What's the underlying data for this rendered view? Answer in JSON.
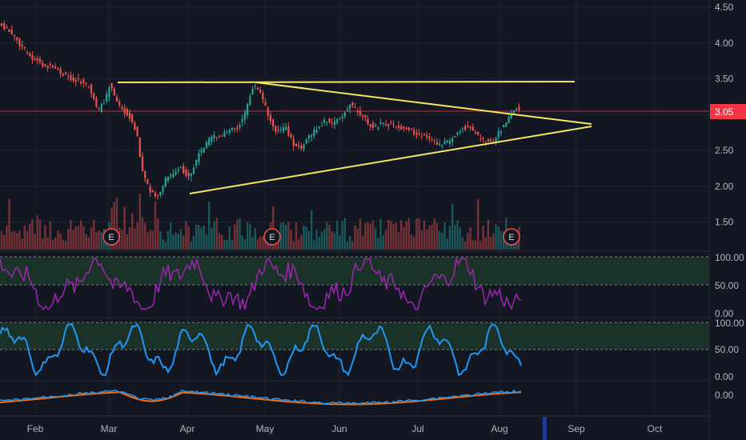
{
  "chart_data": {
    "type": "candlestick",
    "price_axis": {
      "ticks": [
        "4.50",
        "4.00",
        "3.50",
        "3.00",
        "2.50",
        "2.00",
        "1.50"
      ],
      "ylim": [
        1.1,
        4.6
      ]
    },
    "current_price": {
      "label": "3.05",
      "value": 3.05
    },
    "time_axis": {
      "ticks": [
        "Feb",
        "Mar",
        "Apr",
        "May",
        "Jun",
        "Jul",
        "Aug",
        "Sep",
        "Oct"
      ]
    },
    "earnings_markers": [
      "E",
      "E",
      "E"
    ],
    "trendlines": [
      {
        "from": [
          "Mar",
          "3.45"
        ],
        "to": [
          "Sep",
          "3.47"
        ]
      },
      {
        "from": [
          "May",
          "3.45"
        ],
        "to": [
          "Sep",
          "2.85"
        ]
      },
      {
        "from": [
          "Apr",
          "1.90"
        ],
        "to": [
          "Sep",
          "2.80"
        ]
      }
    ],
    "rsi": {
      "ticks": [
        "100.00",
        "50.00",
        "0.00"
      ],
      "band": [
        50,
        100
      ]
    },
    "stochastic": {
      "ticks": [
        "100.00",
        "50.00",
        "0.00"
      ],
      "band": [
        50,
        100
      ]
    },
    "macd": {
      "ticks": [
        "0.00"
      ]
    },
    "colors": {
      "background": "#131722",
      "up": "#26a69a",
      "down": "#ef5350",
      "trendline": "#f5e663",
      "rsi_line": "#9c27b0",
      "stoch_line": "#2196f3",
      "macd_line": "#2196f3",
      "signal_line": "#ff6d00",
      "band": "#1e3a2b",
      "price_label": "#f23645"
    }
  }
}
